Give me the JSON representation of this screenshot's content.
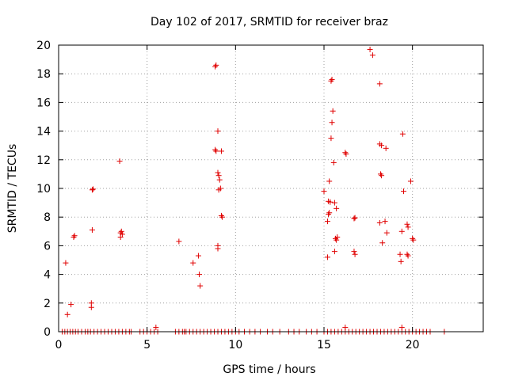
{
  "chart_data": {
    "type": "scatter",
    "title": "Day 102 of 2017, SRMTID for receiver braz",
    "xlabel": "GPS time / hours",
    "ylabel": "SRMTID / TECUs",
    "xlim": [
      0,
      24
    ],
    "ylim": [
      0,
      20
    ],
    "x_ticks": [
      0,
      5,
      10,
      15,
      20
    ],
    "y_ticks": [
      0,
      2,
      4,
      6,
      8,
      10,
      12,
      14,
      16,
      18,
      20
    ],
    "grid": true,
    "marker": "+",
    "color": "#e00000",
    "series": [
      {
        "points": [
          [
            0.4,
            4.8
          ],
          [
            0.5,
            1.2
          ],
          [
            0.7,
            1.9
          ],
          [
            0.85,
            6.6
          ],
          [
            0.9,
            6.7
          ],
          [
            1.85,
            1.7
          ],
          [
            1.85,
            2.0
          ],
          [
            1.9,
            7.1
          ],
          [
            1.9,
            9.9
          ],
          [
            1.95,
            9.95
          ],
          [
            3.45,
            11.9
          ],
          [
            3.5,
            6.6
          ],
          [
            3.5,
            6.9
          ],
          [
            3.55,
            7.0
          ],
          [
            3.6,
            6.8
          ],
          [
            5.5,
            0.3
          ],
          [
            6.8,
            6.3
          ],
          [
            7.6,
            4.8
          ],
          [
            7.9,
            5.3
          ],
          [
            7.95,
            4.0
          ],
          [
            8.0,
            3.2
          ],
          [
            8.85,
            18.5
          ],
          [
            8.9,
            18.6
          ],
          [
            8.85,
            12.7
          ],
          [
            8.9,
            12.6
          ],
          [
            9.0,
            14.0
          ],
          [
            9.0,
            11.1
          ],
          [
            9.05,
            10.9
          ],
          [
            9.1,
            10.6
          ],
          [
            9.05,
            9.9
          ],
          [
            9.15,
            10.0
          ],
          [
            9.2,
            12.6
          ],
          [
            9.2,
            8.1
          ],
          [
            9.25,
            8.0
          ],
          [
            9.0,
            6.0
          ],
          [
            9.0,
            5.8
          ],
          [
            15.0,
            9.8
          ],
          [
            15.2,
            7.7
          ],
          [
            15.25,
            8.2
          ],
          [
            15.3,
            8.3
          ],
          [
            15.25,
            9.1
          ],
          [
            15.35,
            9.05
          ],
          [
            15.3,
            10.5
          ],
          [
            15.4,
            13.5
          ],
          [
            15.45,
            14.6
          ],
          [
            15.2,
            5.2
          ],
          [
            15.4,
            17.5
          ],
          [
            15.45,
            17.6
          ],
          [
            15.5,
            15.4
          ],
          [
            15.55,
            11.8
          ],
          [
            15.6,
            9.0
          ],
          [
            15.6,
            5.6
          ],
          [
            15.7,
            8.6
          ],
          [
            15.65,
            6.5
          ],
          [
            15.75,
            6.6
          ],
          [
            15.7,
            6.4
          ],
          [
            16.2,
            12.5
          ],
          [
            16.25,
            12.4
          ],
          [
            16.7,
            7.9
          ],
          [
            16.75,
            7.95
          ],
          [
            16.7,
            5.6
          ],
          [
            16.75,
            5.4
          ],
          [
            17.6,
            19.7
          ],
          [
            17.75,
            19.3
          ],
          [
            18.15,
            17.3
          ],
          [
            18.15,
            13.1
          ],
          [
            18.25,
            13.0
          ],
          [
            18.2,
            11.0
          ],
          [
            18.25,
            10.9
          ],
          [
            18.15,
            7.6
          ],
          [
            18.3,
            6.2
          ],
          [
            18.45,
            7.7
          ],
          [
            18.55,
            6.9
          ],
          [
            18.5,
            12.8
          ],
          [
            19.3,
            5.4
          ],
          [
            19.35,
            4.9
          ],
          [
            19.4,
            7.0
          ],
          [
            19.45,
            13.8
          ],
          [
            19.5,
            9.8
          ],
          [
            19.7,
            7.5
          ],
          [
            19.75,
            7.3
          ],
          [
            19.7,
            5.4
          ],
          [
            19.75,
            5.3
          ],
          [
            19.9,
            10.5
          ],
          [
            20.0,
            6.5
          ],
          [
            20.05,
            6.4
          ],
          [
            19.4,
            0.3
          ],
          [
            16.2,
            0.3
          ]
        ]
      }
    ],
    "baseline_points_y0": [
      0.2,
      0.35,
      0.5,
      0.65,
      0.8,
      0.95,
      1.1,
      1.3,
      1.5,
      1.65,
      1.8,
      2.0,
      2.2,
      2.4,
      2.6,
      2.8,
      3.0,
      3.2,
      3.4,
      3.6,
      3.8,
      4.0,
      4.1,
      4.6,
      4.8,
      5.0,
      5.2,
      5.4,
      5.6,
      6.6,
      6.8,
      7.0,
      7.1,
      7.2,
      7.4,
      7.6,
      7.8,
      8.0,
      8.2,
      8.4,
      8.6,
      8.8,
      9.0,
      9.2,
      9.4,
      9.6,
      9.8,
      10.0,
      10.2,
      10.5,
      10.8,
      11.1,
      11.4,
      11.8,
      12.1,
      12.5,
      13.0,
      13.3,
      13.6,
      14.0,
      14.3,
      14.6,
      15.0,
      15.2,
      15.4,
      15.6,
      15.8,
      16.0,
      16.2,
      16.4,
      16.6,
      16.8,
      17.0,
      17.2,
      17.4,
      17.6,
      17.8,
      18.0,
      18.2,
      18.4,
      18.6,
      18.8,
      19.0,
      19.2,
      19.4,
      19.6,
      19.8,
      20.0,
      20.2,
      20.4,
      20.6,
      20.8,
      21.0,
      21.8
    ]
  }
}
